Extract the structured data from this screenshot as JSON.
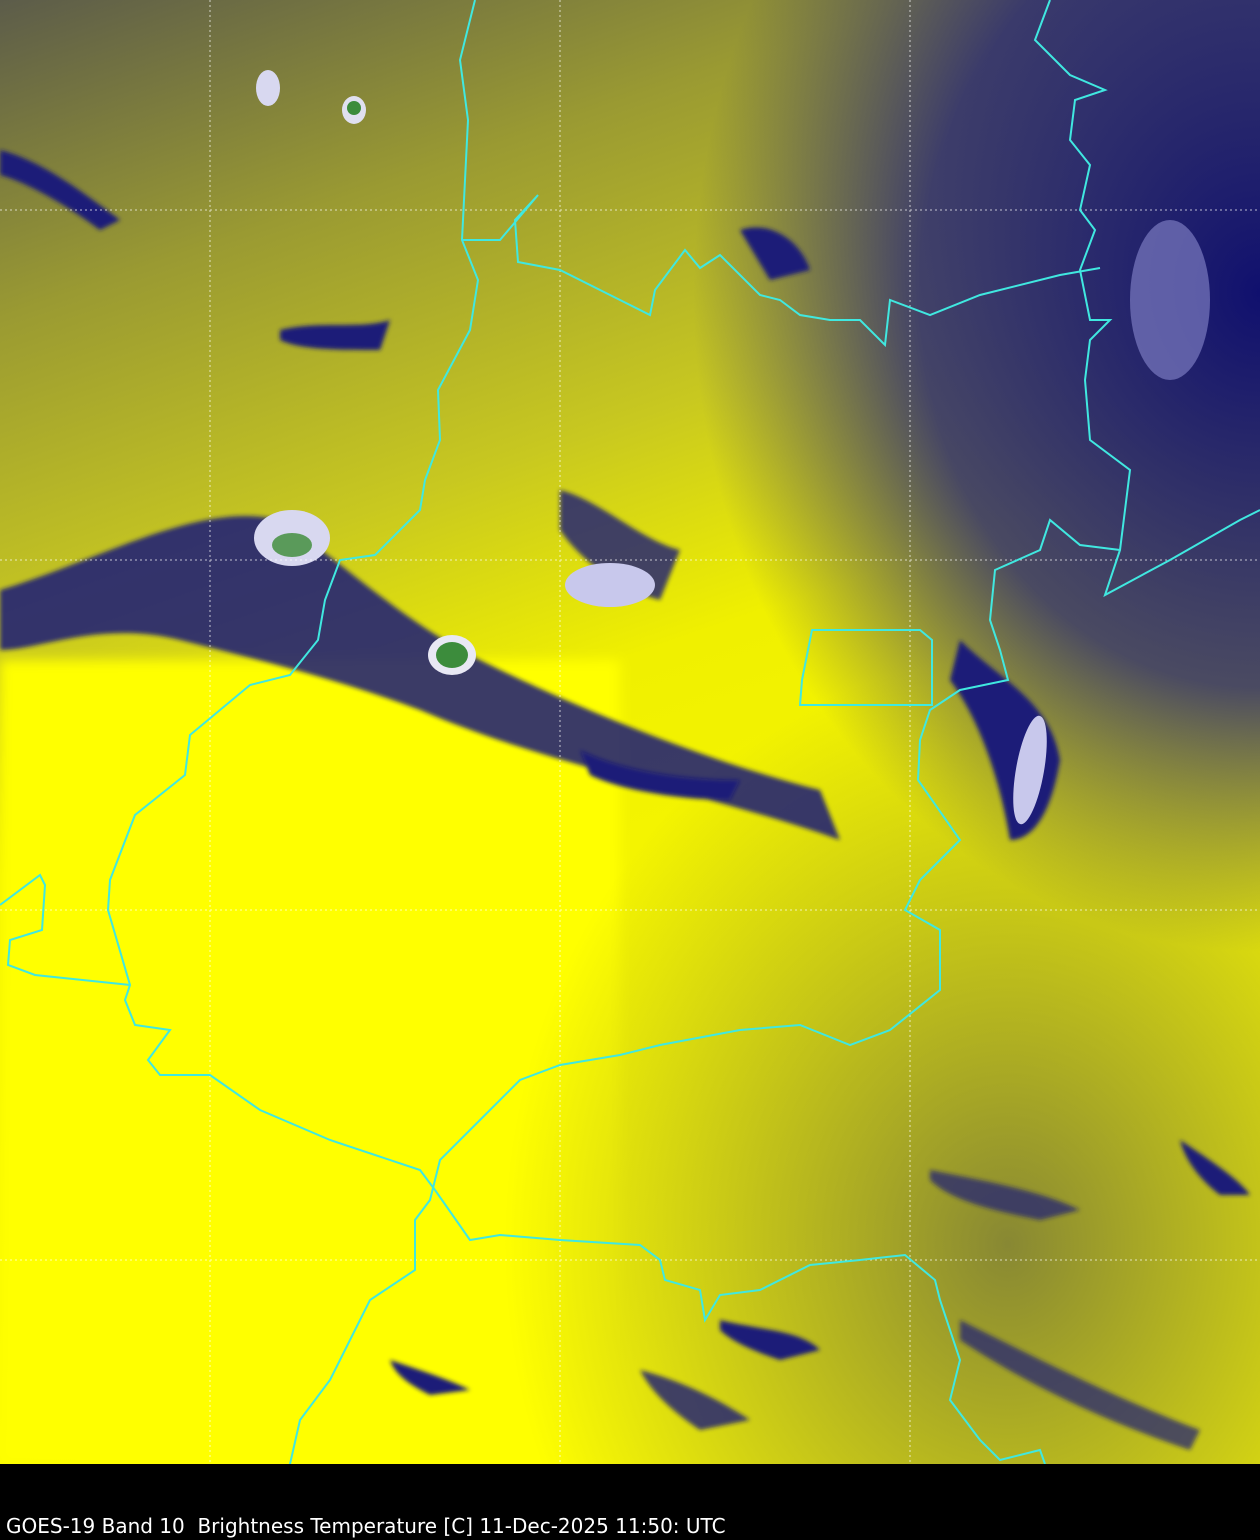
{
  "caption": "GOES-19 Band 10  Brightness Temperature [C] 11-Dec-2025 11:50: UTC",
  "colors": {
    "warm": "#ffff00",
    "mid": "#c8c81e",
    "cold": "#14147a",
    "coldest": "#e8e8f8",
    "overshoot": "#3c8c3c",
    "borders": "#40e8e0",
    "grid": "#ffffff",
    "background": "#000000"
  }
}
